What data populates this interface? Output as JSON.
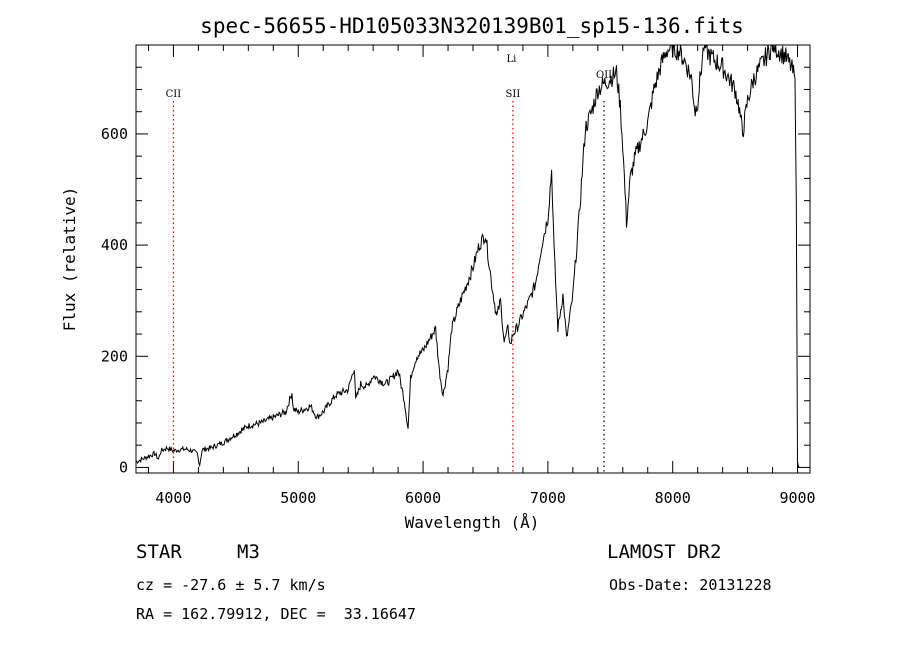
{
  "chart_data": {
    "type": "line",
    "title": "spec-56655-HD105033N320139B01_sp15-136.fits",
    "xlabel": "Wavelength (Å)",
    "ylabel": "Flux (relative)",
    "xlim": [
      3700,
      9100
    ],
    "ylim": [
      -10,
      760
    ],
    "xticks": [
      4000,
      5000,
      6000,
      7000,
      8000,
      9000
    ],
    "yticks": [
      0,
      200,
      400,
      600
    ],
    "grid": false,
    "series": [
      {
        "name": "spectrum",
        "x": [
          3700,
          3750,
          3800,
          3850,
          3880,
          3900,
          3950,
          4000,
          4050,
          4100,
          4150,
          4190,
          4210,
          4230,
          4300,
          4400,
          4500,
          4600,
          4700,
          4800,
          4900,
          4950,
          4960,
          5000,
          5100,
          5150,
          5200,
          5300,
          5400,
          5450,
          5460,
          5500,
          5550,
          5600,
          5700,
          5750,
          5800,
          5850,
          5880,
          5900,
          5920,
          5950,
          6000,
          6050,
          6100,
          6130,
          6160,
          6200,
          6230,
          6270,
          6300,
          6350,
          6400,
          6450,
          6500,
          6550,
          6590,
          6620,
          6650,
          6680,
          6700,
          6720,
          6750,
          6800,
          6850,
          6900,
          6950,
          7000,
          7030,
          7050,
          7080,
          7120,
          7150,
          7200,
          7250,
          7300,
          7350,
          7400,
          7450,
          7500,
          7550,
          7580,
          7600,
          7630,
          7660,
          7700,
          7750,
          7800,
          7850,
          7900,
          7950,
          8000,
          8050,
          8100,
          8150,
          8180,
          8200,
          8230,
          8250,
          8300,
          8350,
          8400,
          8450,
          8500,
          8530,
          8560,
          8600,
          8650,
          8700,
          8750,
          8800,
          8850,
          8900,
          8950,
          8980,
          8990,
          9000,
          9010
        ],
        "y": [
          10,
          15,
          20,
          25,
          15,
          30,
          35,
          30,
          32,
          33,
          30,
          25,
          5,
          32,
          35,
          45,
          60,
          75,
          80,
          90,
          100,
          135,
          105,
          100,
          110,
          90,
          100,
          130,
          140,
          180,
          120,
          150,
          145,
          165,
          150,
          160,
          175,
          120,
          70,
          160,
          180,
          200,
          210,
          230,
          250,
          175,
          130,
          180,
          250,
          280,
          300,
          330,
          360,
          400,
          420,
          330,
          270,
          300,
          225,
          250,
          220,
          240,
          250,
          275,
          300,
          330,
          400,
          450,
          535,
          390,
          250,
          310,
          230,
          310,
          450,
          610,
          640,
          680,
          690,
          700,
          710,
          650,
          580,
          440,
          520,
          560,
          590,
          620,
          680,
          720,
          750,
          755,
          750,
          730,
          700,
          640,
          660,
          720,
          760,
          740,
          730,
          720,
          700,
          680,
          650,
          600,
          660,
          700,
          720,
          740,
          760,
          750,
          740,
          720,
          700,
          480,
          10,
          0
        ]
      }
    ],
    "lines": [
      {
        "label": "CII",
        "x": 4000,
        "color": "#cc0000"
      },
      {
        "label": "SII",
        "x": 6720,
        "color": "#cc0000"
      },
      {
        "label": "Li",
        "x": 6708,
        "color": "#cc0000"
      },
      {
        "label": "OII",
        "x": 7450,
        "color": "#000000"
      }
    ]
  },
  "info": {
    "object_type": "STAR",
    "subclass": "M3",
    "survey": "LAMOST DR2",
    "cz": "cz = -27.6 ± 5.7 km/s",
    "obs_date": "Obs-Date: 20131228",
    "coords": "RA = 162.79912, DEC =  33.16647"
  },
  "colors": {
    "spectrum": "#000000",
    "marker_red": "#cc0000",
    "marker_black": "#000000"
  }
}
